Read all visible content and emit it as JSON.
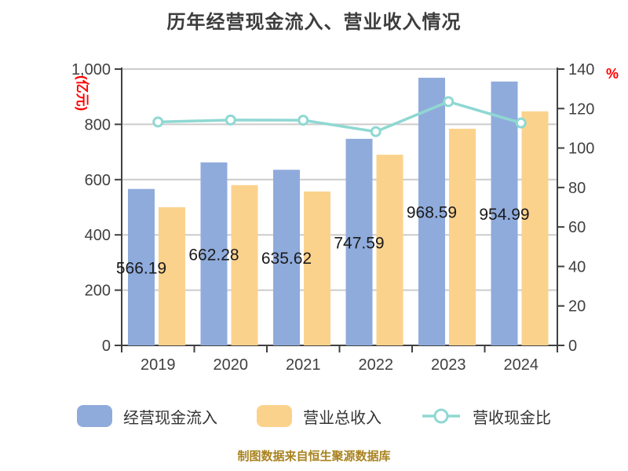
{
  "title": "历年经营现金流入、营业收入情况",
  "footer": "制图数据来自恒生聚源数据库",
  "colors": {
    "cash_bar": "#8fabdc",
    "revenue_bar": "#fbd28c",
    "ratio_line": "#8fd8d2",
    "marker_fill": "#ffffff",
    "grid": "#cccccc",
    "axis": "#404040",
    "tick_text": "#404040",
    "bar_label_text": "#1a1a1a",
    "red_label": "#ff0000",
    "title_text": "#3d3d3d",
    "footer_text": "#a9831f"
  },
  "chart_data": {
    "type": "bar+line combo",
    "categories": [
      "2019",
      "2020",
      "2021",
      "2022",
      "2023",
      "2024"
    ],
    "series": [
      {
        "name": "经营现金流入",
        "type": "bar",
        "axis": "left",
        "values": [
          566.19,
          662.28,
          635.62,
          747.59,
          968.59,
          954.99
        ],
        "labels": [
          "566.19",
          "662.28",
          "635.62",
          "747.59",
          "968.59",
          "954.99"
        ]
      },
      {
        "name": "营业总收入",
        "type": "bar",
        "axis": "left",
        "values": [
          500,
          580,
          557,
          690,
          784,
          847
        ],
        "labels": []
      },
      {
        "name": "营收现金比",
        "type": "line",
        "axis": "right",
        "values": [
          113.2,
          114.2,
          114.1,
          108.3,
          123.5,
          112.7
        ],
        "labels": []
      }
    ],
    "left_axis": {
      "unit_label": "(亿元)",
      "min": 0,
      "max": 1000,
      "step": 200,
      "tick_labels": [
        "0",
        "200",
        "400",
        "600",
        "800",
        "1,000"
      ]
    },
    "right_axis": {
      "unit_label": "%",
      "min": 0,
      "max": 140,
      "step": 20,
      "tick_labels": [
        "0",
        "20",
        "40",
        "60",
        "80",
        "100",
        "120",
        "140"
      ]
    },
    "grid": true,
    "legend_position": "bottom"
  },
  "legend": {
    "items": [
      {
        "label": "经营现金流入",
        "marker": "bar-swatch",
        "color_key": "cash_bar"
      },
      {
        "label": "营业总收入",
        "marker": "bar-swatch",
        "color_key": "revenue_bar"
      },
      {
        "label": "营收现金比",
        "marker": "line-marker",
        "color_key": "ratio_line"
      }
    ]
  }
}
